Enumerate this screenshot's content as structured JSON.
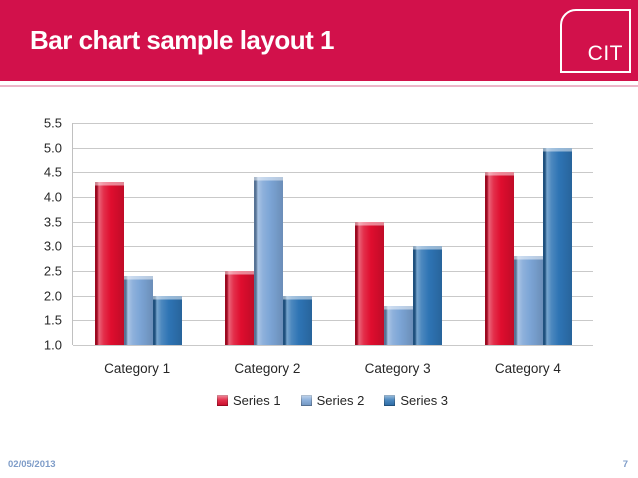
{
  "header": {
    "title": "Bar chart sample layout 1",
    "logo_text": "CIT"
  },
  "footer": {
    "date": "02/05/2013",
    "page_number": "7"
  },
  "colors": {
    "header_bg": "#D2114B",
    "header_accent_line": "#ECB6C8",
    "gridline": "#C9C9C9",
    "axis_line": "#C0C0C0",
    "chart_text": "#262626",
    "footer_text": "#7E9CC8",
    "series1": "#DF0D2E",
    "series2": "#7CA5D6",
    "series3": "#2E74B4"
  },
  "chart_data": {
    "type": "bar",
    "title": "",
    "xlabel": "",
    "ylabel": "",
    "categories": [
      "Category 1",
      "Category 2",
      "Category 3",
      "Category 4"
    ],
    "series": [
      {
        "name": "Series 1",
        "color": "#DF0D2E",
        "values": [
          4.3,
          2.5,
          3.5,
          4.5
        ]
      },
      {
        "name": "Series 2",
        "color": "#7CA5D6",
        "values": [
          2.4,
          4.4,
          1.8,
          2.8
        ]
      },
      {
        "name": "Series 3",
        "color": "#2E74B4",
        "values": [
          2.0,
          2.0,
          3.0,
          5.0
        ]
      }
    ],
    "ylim": [
      1.0,
      5.5
    ],
    "ytick_step": 0.5,
    "yticks": [
      "5.5",
      "5.0",
      "4.5",
      "4.0",
      "3.5",
      "3.0",
      "2.5",
      "2.0",
      "1.5",
      "1.0"
    ],
    "baseline": 1.0,
    "grid": true,
    "legend_position": "bottom"
  }
}
